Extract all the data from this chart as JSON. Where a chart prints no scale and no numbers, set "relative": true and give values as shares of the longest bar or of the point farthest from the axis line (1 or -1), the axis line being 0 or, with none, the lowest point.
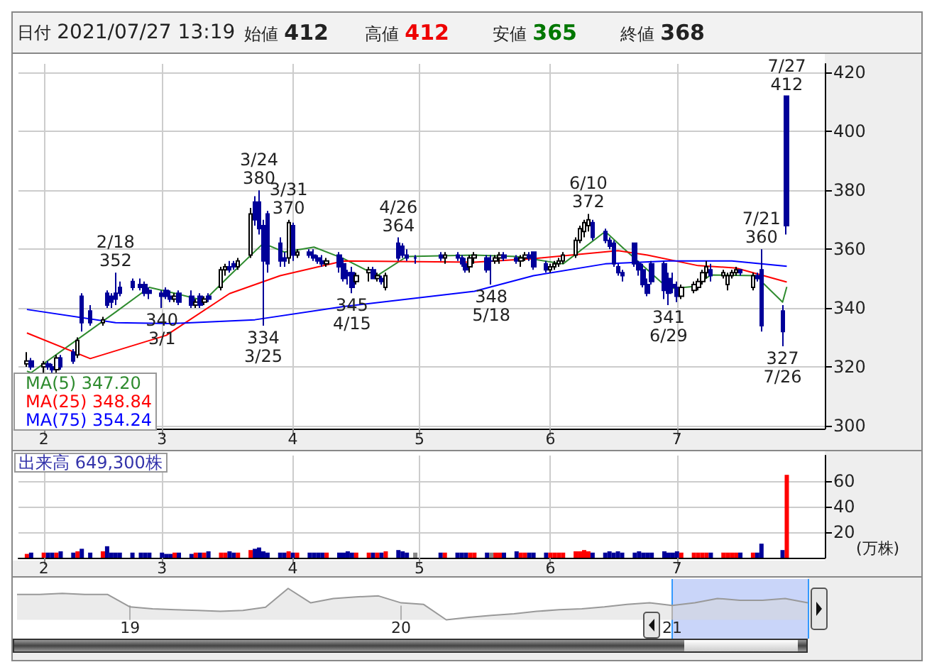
{
  "chart_data": [
    {
      "type": "candlestick",
      "colors": [
        "#ffffff",
        "#000099",
        "#ffffff",
        "#000099",
        "#000099",
        "#ffffff",
        "#000099",
        "#000099",
        "#ffffff",
        "#000099",
        "#000099",
        "#ffffff",
        "#000099",
        "#000099",
        "#000099",
        "#000099",
        "#000099",
        "#000099",
        "#000099",
        "#000099",
        "#000099",
        "#000099",
        "#000099",
        "#ffffff",
        "#000099",
        "#000099",
        "#ffffff",
        "#000099",
        "#ffffff",
        "#000099",
        "#ffffff",
        "#ffffff",
        "#000099",
        "#000099",
        "#ffffff",
        "#ffffff",
        "#000099",
        "#000099",
        "#000099",
        "#000099",
        "#000099",
        "#000099",
        "#ffffff",
        "#000099",
        "#ffffff",
        "#000099",
        "#000099",
        "#000099",
        "#000099",
        "#ffffff",
        "#000099",
        "#000099",
        "#000099",
        "#000099",
        "#ffffff",
        "#ffffff",
        "#000099",
        "#ffffff",
        "#000099",
        "#ffffff",
        "#000099",
        "#000099",
        "#000099",
        "#000099",
        "#000099",
        "#ffffff",
        "#000099",
        "#000099",
        "#000099",
        "#ffffff",
        "#ffffff",
        "#000099",
        "#000099",
        "#ffffff",
        "#ffffff",
        "#000099",
        "#000099",
        "#ffffff",
        "#ffffff",
        "#000099",
        "#000099",
        "#000099",
        "#ffffff",
        "#ffffff",
        "#ffffff",
        "#ffffff",
        "#ffffff",
        "#ffffff",
        "#ffffff",
        "#ffffff",
        "#000099",
        "#000099",
        "#000099",
        "#000099",
        "#000099",
        "#000099",
        "#000099",
        "#000099",
        "#000099",
        "#000099",
        "#000099",
        "#000099",
        "#000099",
        "#000099",
        "#000099",
        "#ffffff",
        "#ffffff",
        "#ffffff",
        "#ffffff",
        "#ffffff",
        "#000099",
        "#ffffff",
        "#ffffff",
        "#ffffff",
        "#ffffff",
        "#000099",
        "#ffffff",
        "#000099",
        "#000099",
        "#000099",
        "#000099"
      ],
      "x": [
        "2021-01-28",
        "2021-01-29",
        "2021-02-01",
        "2021-02-02",
        "2021-02-03",
        "2021-02-04",
        "2021-02-05",
        "2021-02-08",
        "2021-02-09",
        "2021-02-10",
        "2021-02-12",
        "2021-02-15",
        "2021-02-16",
        "2021-02-17",
        "2021-02-18",
        "2021-02-19",
        "2021-02-22",
        "2021-02-24",
        "2021-02-25",
        "2021-02-26",
        "2021-03-01",
        "2021-03-02",
        "2021-03-03",
        "2021-03-04",
        "2021-03-05",
        "2021-03-08",
        "2021-03-09",
        "2021-03-10",
        "2021-03-11",
        "2021-03-12",
        "2021-03-15",
        "2021-03-16",
        "2021-03-17",
        "2021-03-18",
        "2021-03-19",
        "2021-03-22",
        "2021-03-23",
        "2021-03-24",
        "2021-03-25",
        "2021-03-26",
        "2021-03-29",
        "2021-03-30",
        "2021-03-31",
        "2021-04-01",
        "2021-04-02",
        "2021-04-05",
        "2021-04-06",
        "2021-04-07",
        "2021-04-08",
        "2021-04-09",
        "2021-04-12",
        "2021-04-13",
        "2021-04-14",
        "2021-04-15",
        "2021-04-16",
        "2021-04-19",
        "2021-04-20",
        "2021-04-21",
        "2021-04-22",
        "2021-04-23",
        "2021-04-26",
        "2021-04-27",
        "2021-04-28",
        "2021-04-30",
        "2021-05-06",
        "2021-05-07",
        "2021-05-10",
        "2021-05-11",
        "2021-05-12",
        "2021-05-13",
        "2021-05-14",
        "2021-05-17",
        "2021-05-18",
        "2021-05-19",
        "2021-05-20",
        "2021-05-21",
        "2021-05-24",
        "2021-05-25",
        "2021-05-26",
        "2021-05-27",
        "2021-05-28",
        "2021-05-31",
        "2021-06-01",
        "2021-06-02",
        "2021-06-03",
        "2021-06-04",
        "2021-06-07",
        "2021-06-08",
        "2021-06-09",
        "2021-06-10",
        "2021-06-11",
        "2021-06-14",
        "2021-06-15",
        "2021-06-16",
        "2021-06-17",
        "2021-06-18",
        "2021-06-21",
        "2021-06-22",
        "2021-06-23",
        "2021-06-24",
        "2021-06-25",
        "2021-06-28",
        "2021-06-29",
        "2021-06-30",
        "2021-07-01",
        "2021-07-02",
        "2021-07-05",
        "2021-07-06",
        "2021-07-07",
        "2021-07-08",
        "2021-07-09",
        "2021-07-12",
        "2021-07-13",
        "2021-07-14",
        "2021-07-15",
        "2021-07-16",
        "2021-07-19",
        "2021-07-20",
        "2021-07-21",
        "2021-07-26",
        "2021-07-27"
      ],
      "ohlc": [
        [
          321,
          325,
          320,
          322
        ],
        [
          322,
          323,
          319,
          320
        ],
        [
          320,
          322,
          318,
          321
        ],
        [
          321,
          322,
          319,
          320
        ],
        [
          320,
          321,
          318,
          319
        ],
        [
          319,
          324,
          318,
          323
        ],
        [
          323,
          324,
          319,
          320
        ],
        [
          325,
          326,
          321,
          322
        ],
        [
          324,
          330,
          323,
          329
        ],
        [
          344,
          345,
          332,
          335
        ],
        [
          339,
          341,
          334,
          335
        ],
        [
          335,
          337,
          334,
          336
        ],
        [
          345,
          346,
          340,
          341
        ],
        [
          344,
          345,
          340,
          342
        ],
        [
          345,
          352,
          341,
          343
        ],
        [
          347,
          349,
          344,
          345
        ],
        [
          349,
          350,
          346,
          347
        ],
        [
          348,
          350,
          346,
          347
        ],
        [
          348,
          349,
          344,
          345
        ],
        [
          346,
          347,
          343,
          345
        ],
        [
          345,
          346,
          340,
          344
        ],
        [
          346,
          347,
          343,
          344
        ],
        [
          344,
          346,
          342,
          343
        ],
        [
          343,
          345,
          342,
          344
        ],
        [
          345,
          346,
          341,
          342
        ],
        [
          344,
          346,
          340,
          341
        ],
        [
          341,
          343,
          340,
          342
        ],
        [
          344,
          345,
          340,
          341
        ],
        [
          342,
          344,
          341,
          343
        ],
        [
          344,
          345,
          342,
          343
        ],
        [
          347,
          354,
          346,
          353
        ],
        [
          353,
          355,
          351,
          354
        ],
        [
          354,
          356,
          352,
          353
        ],
        [
          355,
          356,
          353,
          354
        ],
        [
          354,
          357,
          353,
          356
        ],
        [
          358,
          374,
          357,
          372
        ],
        [
          376,
          378,
          368,
          370
        ],
        [
          376,
          380,
          365,
          367
        ],
        [
          368,
          370,
          334,
          356
        ],
        [
          372,
          373,
          352,
          355
        ],
        [
          362,
          364,
          354,
          356
        ],
        [
          357,
          359,
          354,
          356
        ],
        [
          357,
          370,
          355,
          369
        ],
        [
          368,
          369,
          356,
          358
        ],
        [
          358,
          360,
          357,
          359
        ],
        [
          359,
          360,
          357,
          358
        ],
        [
          358,
          360,
          356,
          357
        ],
        [
          357,
          358,
          355,
          356
        ],
        [
          356,
          358,
          354,
          355
        ],
        [
          355,
          357,
          354,
          356
        ],
        [
          358,
          359,
          352,
          354
        ],
        [
          355,
          357,
          349,
          350
        ],
        [
          352,
          353,
          348,
          351
        ],
        [
          352,
          354,
          345,
          347
        ],
        [
          349,
          352,
          348,
          351
        ],
        [
          352,
          354,
          349,
          353
        ],
        [
          353,
          354,
          350,
          350
        ],
        [
          350,
          352,
          349,
          351
        ],
        [
          350,
          351,
          348,
          349
        ],
        [
          347,
          352,
          346,
          351
        ],
        [
          362,
          364,
          356,
          357
        ],
        [
          361,
          362,
          357,
          358
        ],
        [
          358,
          360,
          356,
          357
        ],
        [
          357,
          358,
          355,
          357
        ],
        [
          358,
          359,
          356,
          357
        ],
        [
          357,
          359,
          355,
          358
        ],
        [
          358,
          359,
          356,
          357
        ],
        [
          357,
          358,
          354,
          355
        ],
        [
          355,
          357,
          352,
          353
        ],
        [
          354,
          358,
          352,
          357
        ],
        [
          357,
          359,
          355,
          358
        ],
        [
          357,
          358,
          352,
          353
        ],
        [
          356,
          358,
          348,
          356
        ],
        [
          356,
          358,
          355,
          357
        ],
        [
          357,
          359,
          355,
          358
        ],
        [
          358,
          359,
          356,
          357
        ],
        [
          357,
          358,
          355,
          356
        ],
        [
          356,
          358,
          354,
          357
        ],
        [
          357,
          359,
          356,
          358
        ],
        [
          358,
          359,
          356,
          357
        ],
        [
          359,
          359,
          353,
          354
        ],
        [
          355,
          356,
          352,
          353
        ],
        [
          353,
          355,
          352,
          354
        ],
        [
          354,
          356,
          353,
          355
        ],
        [
          355,
          357,
          354,
          356
        ],
        [
          356,
          359,
          355,
          358
        ],
        [
          358,
          364,
          357,
          363
        ],
        [
          363,
          368,
          362,
          367
        ],
        [
          366,
          370,
          364,
          369
        ],
        [
          368,
          372,
          366,
          370
        ],
        [
          369,
          370,
          363,
          364
        ],
        [
          366,
          367,
          362,
          363
        ],
        [
          363,
          364,
          360,
          361
        ],
        [
          362,
          363,
          354,
          355
        ],
        [
          354,
          355,
          351,
          352
        ],
        [
          352,
          353,
          349,
          351
        ],
        [
          362,
          362,
          354,
          355
        ],
        [
          355,
          356,
          351,
          353
        ],
        [
          353,
          355,
          347,
          348
        ],
        [
          348,
          350,
          344,
          345
        ],
        [
          355,
          356,
          348,
          349
        ],
        [
          355,
          356,
          343,
          346
        ],
        [
          350,
          352,
          341,
          345
        ],
        [
          348,
          352,
          345,
          347
        ],
        [
          347,
          349,
          342,
          344
        ],
        [
          344,
          348,
          343,
          347
        ],
        [
          346,
          349,
          345,
          348
        ],
        [
          347,
          350,
          346,
          349
        ],
        [
          349,
          353,
          348,
          352
        ],
        [
          352,
          356,
          350,
          354
        ],
        [
          353,
          355,
          349,
          351
        ],
        [
          351,
          353,
          350,
          352
        ],
        [
          348,
          352,
          346,
          351
        ],
        [
          351,
          353,
          350,
          352
        ],
        [
          352,
          354,
          351,
          353
        ],
        [
          353,
          353,
          351,
          352
        ],
        [
          347,
          352,
          346,
          351
        ],
        [
          351,
          352,
          349,
          350
        ],
        [
          353,
          360,
          332,
          334
        ],
        [
          339,
          341,
          327,
          332
        ],
        [
          412,
          412,
          365,
          368
        ]
      ],
      "series": [
        {
          "type": "line",
          "name": "MA(5) 347.20",
          "color": "#2e8b2e",
          "x": [
            "2021-01-28",
            "2021-01-29",
            "2021-02-18",
            "2021-02-26",
            "2021-03-04",
            "2021-03-11",
            "2021-03-17",
            "2021-03-25",
            "2021-03-30",
            "2021-04-06",
            "2021-04-13",
            "2021-04-21",
            "2021-04-28",
            "2021-05-14",
            "2021-05-24",
            "2021-06-04",
            "2021-06-14",
            "2021-06-18",
            "2021-06-29",
            "2021-07-05",
            "2021-07-09",
            "2021-07-20",
            "2021-07-21",
            "2021-07-26",
            "2021-07-27"
          ],
          "values": [
            318.5,
            318,
            338.6,
            347,
            345,
            342.5,
            351,
            362,
            359,
            360.7,
            356.8,
            351,
            357.5,
            358,
            357.5,
            355,
            366,
            360.7,
            346.5,
            347.3,
            351.2,
            351,
            349,
            342,
            347.2
          ]
        },
        {
          "type": "line",
          "name": "MA(25) 348.84",
          "color": "#ff0000",
          "x": [
            "2021-01-28",
            "2021-02-12",
            "2021-03-02",
            "2021-03-17",
            "2021-03-29",
            "2021-04-13",
            "2021-05-14",
            "2021-05-28",
            "2021-06-17",
            "2021-06-24",
            "2021-07-06",
            "2021-07-15",
            "2021-07-27"
          ],
          "values": [
            331.5,
            322.8,
            330.7,
            344.9,
            351,
            356,
            355.6,
            356.8,
            359.5,
            358,
            354.4,
            353.6,
            348.8
          ]
        },
        {
          "type": "line",
          "name": "MA(75) 354.24",
          "color": "#0000ff",
          "x": [
            "2021-01-28",
            "2021-02-18",
            "2021-03-03",
            "2021-03-23",
            "2021-04-13",
            "2021-05-14",
            "2021-05-28",
            "2021-06-14",
            "2021-06-29",
            "2021-07-14",
            "2021-07-27"
          ],
          "values": [
            339.5,
            335,
            334.7,
            336,
            340.5,
            345.7,
            351,
            355,
            356,
            356,
            354.2
          ]
        }
      ],
      "xlim": [
        "2021-01-26",
        "2021-08-05"
      ],
      "xticks": [
        {
          "value": "2021-02-01",
          "label": "2"
        },
        {
          "value": "2021-03-01",
          "label": "3"
        },
        {
          "value": "2021-04-01",
          "label": "4"
        },
        {
          "value": "2021-05-01",
          "label": "5"
        },
        {
          "value": "2021-06-01",
          "label": "6"
        },
        {
          "value": "2021-07-01",
          "label": "7"
        }
      ],
      "ylim": [
        299,
        423
      ],
      "yticks": [
        300,
        320,
        340,
        360,
        380,
        400,
        420
      ],
      "grid": true,
      "legend": "bottom left",
      "annotations": [
        "日付 2021/07/27 13:19",
        "始値 412",
        "高値 412",
        "安値 365",
        "終値 368",
        {
          "text": "2/18\n352",
          "x": "2021-02-18",
          "y": 352
        },
        {
          "text": "340\n3/1",
          "x": "2021-03-01",
          "y": 340
        },
        {
          "text": "3/24\n380",
          "x": "2021-03-24",
          "y": 380
        },
        {
          "text": "334\n3/25",
          "x": "2021-03-25",
          "y": 334
        },
        {
          "text": "3/31\n370",
          "x": "2021-03-31",
          "y": 370
        },
        {
          "text": "345\n4/15",
          "x": "2021-04-15",
          "y": 345
        },
        {
          "text": "4/26\n364",
          "x": "2021-04-26",
          "y": 364
        },
        {
          "text": "348\n5/18",
          "x": "2021-05-18",
          "y": 348
        },
        {
          "text": "6/10\n372",
          "x": "2021-06-10",
          "y": 372
        },
        {
          "text": "341\n6/29",
          "x": "2021-06-29",
          "y": 341
        },
        {
          "text": "7/21\n360",
          "x": "2021-07-21",
          "y": 360
        },
        {
          "text": "327\n7/26",
          "x": "2021-07-26",
          "y": 327
        },
        {
          "text": "7/27\n412",
          "x": "2021-07-27",
          "y": 412
        }
      ]
    },
    {
      "type": "bar",
      "title": "出来高 649,300株",
      "ylabel": "(万株)",
      "x": [
        "2021-01-28",
        "2021-01-29",
        "2021-02-01",
        "2021-02-02",
        "2021-02-03",
        "2021-02-04",
        "2021-02-05",
        "2021-02-08",
        "2021-02-09",
        "2021-02-10",
        "2021-02-12",
        "2021-02-15",
        "2021-02-16",
        "2021-02-17",
        "2021-02-18",
        "2021-02-19",
        "2021-02-22",
        "2021-02-24",
        "2021-02-25",
        "2021-02-26",
        "2021-03-01",
        "2021-03-02",
        "2021-03-03",
        "2021-03-04",
        "2021-03-05",
        "2021-03-08",
        "2021-03-09",
        "2021-03-10",
        "2021-03-11",
        "2021-03-12",
        "2021-03-15",
        "2021-03-16",
        "2021-03-17",
        "2021-03-18",
        "2021-03-19",
        "2021-03-22",
        "2021-03-23",
        "2021-03-24",
        "2021-03-25",
        "2021-03-26",
        "2021-03-29",
        "2021-03-30",
        "2021-03-31",
        "2021-04-01",
        "2021-04-02",
        "2021-04-05",
        "2021-04-06",
        "2021-04-07",
        "2021-04-08",
        "2021-04-09",
        "2021-04-12",
        "2021-04-13",
        "2021-04-14",
        "2021-04-15",
        "2021-04-16",
        "2021-04-19",
        "2021-04-20",
        "2021-04-21",
        "2021-04-22",
        "2021-04-23",
        "2021-04-26",
        "2021-04-27",
        "2021-04-28",
        "2021-04-30",
        "2021-05-06",
        "2021-05-07",
        "2021-05-10",
        "2021-05-11",
        "2021-05-12",
        "2021-05-13",
        "2021-05-14",
        "2021-05-17",
        "2021-05-18",
        "2021-05-19",
        "2021-05-20",
        "2021-05-21",
        "2021-05-24",
        "2021-05-25",
        "2021-05-26",
        "2021-05-27",
        "2021-05-28",
        "2021-05-31",
        "2021-06-01",
        "2021-06-02",
        "2021-06-03",
        "2021-06-04",
        "2021-06-07",
        "2021-06-08",
        "2021-06-09",
        "2021-06-10",
        "2021-06-11",
        "2021-06-14",
        "2021-06-15",
        "2021-06-16",
        "2021-06-17",
        "2021-06-18",
        "2021-06-21",
        "2021-06-22",
        "2021-06-23",
        "2021-06-24",
        "2021-06-25",
        "2021-06-28",
        "2021-06-29",
        "2021-06-30",
        "2021-07-01",
        "2021-07-02",
        "2021-07-05",
        "2021-07-06",
        "2021-07-07",
        "2021-07-08",
        "2021-07-09",
        "2021-07-12",
        "2021-07-13",
        "2021-07-14",
        "2021-07-15",
        "2021-07-16",
        "2021-07-19",
        "2021-07-20",
        "2021-07-21",
        "2021-07-26",
        "2021-07-27"
      ],
      "values": [
        3,
        4,
        4,
        4,
        4,
        4,
        5,
        4,
        5,
        7,
        4,
        5,
        9,
        4,
        4,
        4,
        4,
        4,
        4,
        4,
        4,
        3,
        3,
        4,
        4,
        3,
        4,
        4,
        4,
        5,
        4,
        4,
        5,
        4,
        4,
        6,
        7,
        8,
        5,
        4,
        4,
        4,
        5,
        4,
        4,
        4,
        4,
        4,
        4,
        4,
        4,
        4,
        5,
        4,
        4,
        4,
        4,
        4,
        4,
        5,
        6,
        5,
        4,
        4,
        4,
        4,
        4,
        4,
        4,
        4,
        4,
        4,
        4,
        4,
        4,
        4,
        5,
        4,
        4,
        4,
        4,
        4,
        4,
        4,
        4,
        4,
        5,
        5,
        6,
        5,
        4,
        4,
        5,
        4,
        5,
        4,
        4,
        5,
        4,
        4,
        4,
        5,
        4,
        4,
        5,
        4,
        4,
        4,
        4,
        4,
        4,
        4,
        4,
        4,
        4,
        4,
        4,
        4,
        11,
        6,
        64.9
      ],
      "colors": [
        "#ff0000",
        "#000099",
        "#ff0000",
        "#000099",
        "#000099",
        "#ff0000",
        "#000099",
        "#000099",
        "#ff0000",
        "#000099",
        "#000099",
        "#ff0000",
        "#000099",
        "#000099",
        "#000099",
        "#000099",
        "#000099",
        "#000099",
        "#000099",
        "#000099",
        "#000099",
        "#000099",
        "#000099",
        "#ff0000",
        "#000099",
        "#000099",
        "#ff0000",
        "#000099",
        "#ff0000",
        "#000099",
        "#ff0000",
        "#ff0000",
        "#000099",
        "#000099",
        "#ff0000",
        "#ff0000",
        "#000099",
        "#000099",
        "#000099",
        "#000099",
        "#000099",
        "#000099",
        "#ff0000",
        "#000099",
        "#ff0000",
        "#000099",
        "#000099",
        "#000099",
        "#000099",
        "#ff0000",
        "#000099",
        "#000099",
        "#000099",
        "#000099",
        "#ff0000",
        "#ff0000",
        "#000099",
        "#ff0000",
        "#000099",
        "#ff0000",
        "#000099",
        "#000099",
        "#000099",
        "#888888",
        "#000099",
        "#ff0000",
        "#000099",
        "#000099",
        "#000099",
        "#ff0000",
        "#ff0000",
        "#000099",
        "#888888",
        "#ff0000",
        "#ff0000",
        "#000099",
        "#000099",
        "#ff0000",
        "#ff0000",
        "#000099",
        "#000099",
        "#000099",
        "#ff0000",
        "#ff0000",
        "#ff0000",
        "#ff0000",
        "#ff0000",
        "#ff0000",
        "#ff0000",
        "#ff0000",
        "#000099",
        "#000099",
        "#000099",
        "#000099",
        "#000099",
        "#000099",
        "#000099",
        "#000099",
        "#000099",
        "#000099",
        "#000099",
        "#000099",
        "#000099",
        "#000099",
        "#000099",
        "#ff0000",
        "#ff0000",
        "#ff0000",
        "#ff0000",
        "#ff0000",
        "#000099",
        "#ff0000",
        "#ff0000",
        "#ff0000",
        "#ff0000",
        "#000099",
        "#ff0000",
        "#000099",
        "#000099",
        "#000099",
        "#ff0000"
      ],
      "xlim": [
        "2021-01-26",
        "2021-08-05"
      ],
      "xticks": [
        {
          "value": "2021-02-01",
          "label": "2"
        },
        {
          "value": "2021-03-01",
          "label": "3"
        },
        {
          "value": "2021-04-01",
          "label": "4"
        },
        {
          "value": "2021-05-01",
          "label": "5"
        },
        {
          "value": "2021-06-01",
          "label": "6"
        },
        {
          "value": "2021-07-01",
          "label": "7"
        }
      ],
      "ylim": [
        0,
        80
      ],
      "yticks": [
        20,
        40,
        60
      ],
      "grid": true
    },
    {
      "type": "area",
      "relative": true,
      "color": "#999999",
      "categories": [
        null,
        null,
        null,
        null,
        null,
        "19",
        null,
        null,
        null,
        null,
        null,
        null,
        null,
        null,
        null,
        null,
        null,
        "20",
        null,
        null,
        null,
        null,
        null,
        null,
        null,
        null,
        null,
        null,
        null,
        "21",
        null,
        null,
        null,
        null,
        null,
        null
      ],
      "values": [
        0.81,
        0.81,
        0.84,
        0.81,
        0.81,
        0.41,
        0.35,
        0.32,
        0.3,
        0.27,
        0.3,
        0.4,
        1,
        0.54,
        0.68,
        0.73,
        0.76,
        0.54,
        0.49,
        0,
        0.08,
        0.14,
        0.19,
        0.27,
        0.32,
        0.35,
        0.41,
        0.49,
        0.54,
        0.46,
        0.54,
        0.68,
        0.62,
        0.62,
        0.68,
        0.54
      ]
    }
  ]
}
